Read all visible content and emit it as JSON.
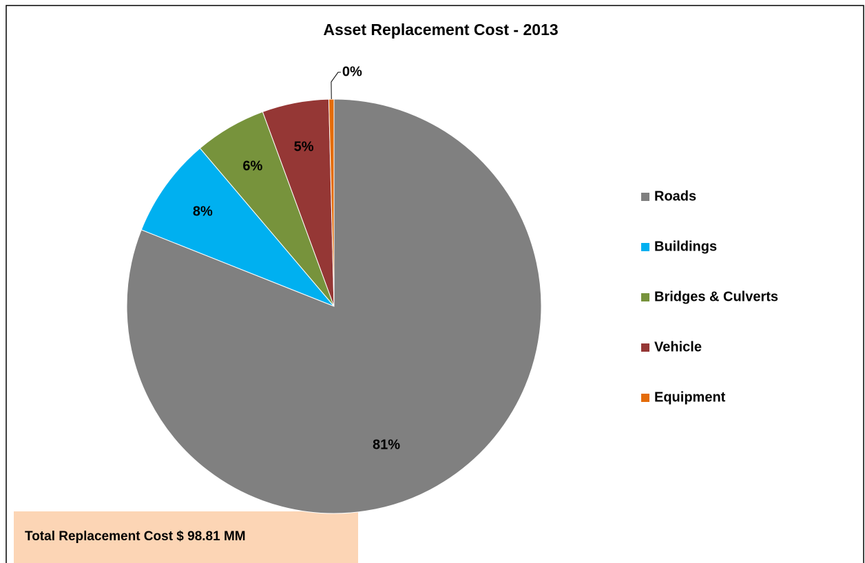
{
  "chart_data": {
    "type": "pie",
    "title": "Asset Replacement Cost - 2013",
    "categories": [
      "Roads",
      "Buildings",
      "Bridges & Culverts",
      "Vehicle",
      "Equipment"
    ],
    "values": [
      81.1,
      7.8,
      5.6,
      5.2,
      0.4
    ],
    "value_labels": [
      "81%",
      "8%",
      "6%",
      "5%",
      "0%"
    ],
    "colors": [
      "#808080",
      "#00b0f0",
      "#77933c",
      "#953735",
      "#e46c0a"
    ],
    "legend": "right",
    "annotation": "Total Replacement Cost $ 98.81 MM"
  }
}
